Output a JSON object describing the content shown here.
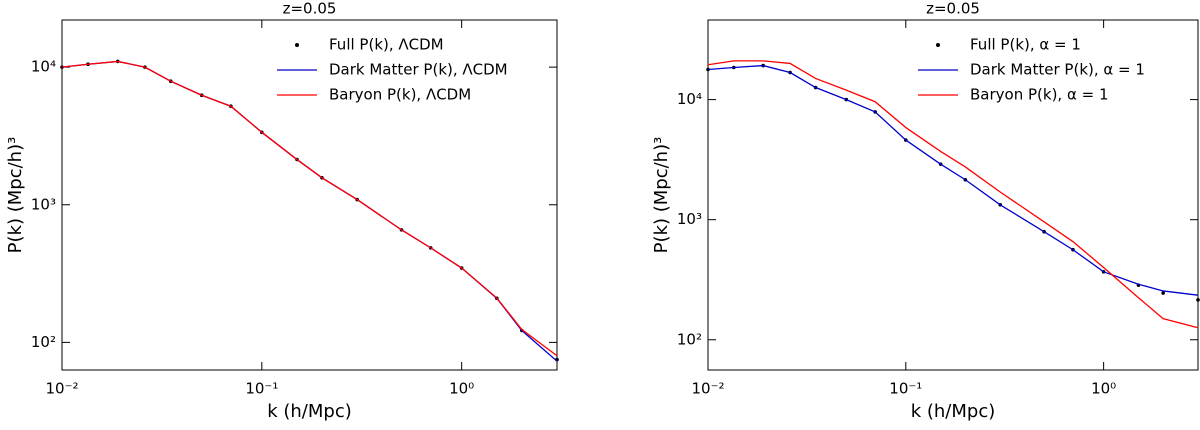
{
  "chart_data": [
    {
      "type": "line",
      "title": "z=0.05",
      "x_label": "k (h/Mpc)",
      "y_label": "P(k) (Mpc/h)³",
      "x_scale": "log",
      "y_scale": "log",
      "legend": "upper right",
      "xlim": [
        0.01,
        3.0
      ],
      "ylim": [
        63,
        22000
      ],
      "xticks": [
        {
          "value": 0.01,
          "label": "10⁻²"
        },
        {
          "value": 0.1,
          "label": "10⁻¹"
        },
        {
          "value": 1,
          "label": "10⁰"
        }
      ],
      "yticks": [
        {
          "value": 100,
          "label": "10²"
        },
        {
          "value": 1000,
          "label": "10³"
        },
        {
          "value": 10000,
          "label": "10⁴"
        }
      ],
      "x": [
        0.01,
        0.0135,
        0.019,
        0.026,
        0.035,
        0.05,
        0.07,
        0.1,
        0.15,
        0.2,
        0.3,
        0.5,
        0.7,
        1.0,
        1.5,
        2.0,
        3.0
      ],
      "series": [
        {
          "name": "Full P(k), ΛCDM",
          "color": "#000000",
          "style": "markers",
          "values": [
            10000,
            10500,
            11000,
            10000,
            7900,
            6250,
            5200,
            3360,
            2130,
            1570,
            1090,
            657,
            486,
            347,
            209,
            122,
            75
          ]
        },
        {
          "name": "Dark Matter P(k), ΛCDM",
          "color": "#0000cc",
          "style": "line",
          "values": [
            10000,
            10500,
            11000,
            10000,
            7900,
            6250,
            5200,
            3360,
            2130,
            1570,
            1090,
            657,
            486,
            347,
            209,
            122,
            73
          ]
        },
        {
          "name": "Baryon P(k), ΛCDM",
          "color": "#ff0000",
          "style": "line",
          "values": [
            10000,
            10500,
            11000,
            10000,
            7900,
            6250,
            5200,
            3360,
            2130,
            1570,
            1090,
            657,
            486,
            347,
            210,
            124,
            80
          ]
        }
      ]
    },
    {
      "type": "line",
      "title": "z=0.05",
      "x_label": "k (h/Mpc)",
      "y_label": "P(k) (Mpc/h)³",
      "x_scale": "log",
      "y_scale": "log",
      "legend": "upper right",
      "xlim": [
        0.01,
        3.0
      ],
      "ylim": [
        56,
        46000
      ],
      "xticks": [
        {
          "value": 0.01,
          "label": "10⁻²"
        },
        {
          "value": 0.1,
          "label": "10⁻¹"
        },
        {
          "value": 1,
          "label": "10⁰"
        }
      ],
      "yticks": [
        {
          "value": 100,
          "label": "10²"
        },
        {
          "value": 1000,
          "label": "10³"
        },
        {
          "value": 10000,
          "label": "10⁴"
        }
      ],
      "x": [
        0.01,
        0.0135,
        0.019,
        0.026,
        0.035,
        0.05,
        0.07,
        0.1,
        0.15,
        0.2,
        0.3,
        0.5,
        0.7,
        1.0,
        1.5,
        2.0,
        3.0
      ],
      "series": [
        {
          "name": "Full P(k), α = 1",
          "color": "#000000",
          "style": "markers",
          "values": [
            17800,
            18500,
            19200,
            16800,
            12600,
            10000,
            7900,
            4600,
            2900,
            2150,
            1330,
            794,
            562,
            368,
            285,
            245,
            215
          ]
        },
        {
          "name": "Dark Matter P(k), α = 1",
          "color": "#0000cc",
          "style": "line",
          "values": [
            17800,
            18500,
            19200,
            16800,
            12600,
            10000,
            7900,
            4600,
            2900,
            2150,
            1330,
            794,
            562,
            368,
            290,
            255,
            235
          ]
        },
        {
          "name": "Baryon P(k), α = 1",
          "color": "#ff0000",
          "style": "line",
          "values": [
            19500,
            21000,
            21000,
            20000,
            15000,
            12000,
            9600,
            5850,
            3700,
            2750,
            1700,
            960,
            656,
            400,
            224,
            150,
            126
          ]
        }
      ]
    }
  ]
}
